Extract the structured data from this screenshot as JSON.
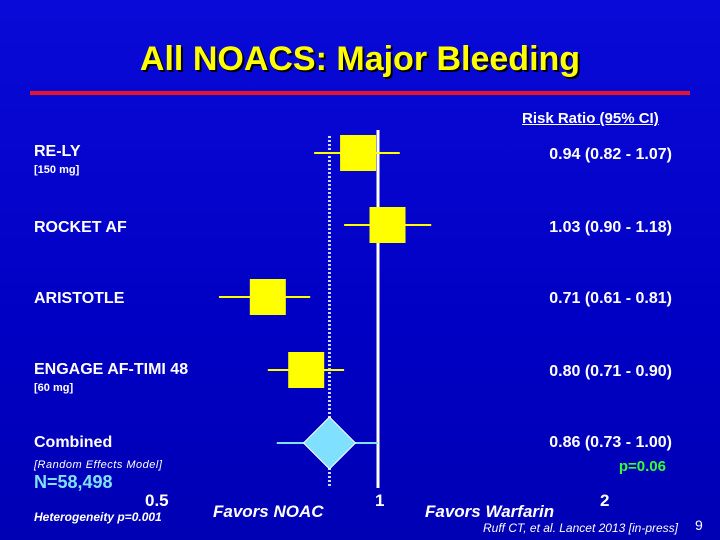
{
  "slide": {
    "title": "All NOACS: Major Bleeding",
    "column_header": "Risk Ratio (95% CI)",
    "combined_subtitle": "[Random Effects Model]",
    "p_value": "p=0.06",
    "n_label": "N=58,498",
    "heterogeneity": "Heterogeneity p=0.001",
    "favors_left": "Favors NOAC",
    "favors_right": "Favors Warfarin",
    "citation": "Ruff CT, et al. Lancet 2013 [in-press]",
    "slide_number": "9"
  },
  "colors": {
    "background": "#0000c8",
    "title": "#ffff00",
    "title_rule": "#e8122a",
    "study_marker": "#ffff00",
    "combined_marker": "#7fe1ff",
    "p_value": "#33ff33",
    "n_label": "#7fe1ff"
  },
  "chart_data": {
    "type": "forest",
    "scale": "log",
    "xlim": [
      0.5,
      2
    ],
    "reference_line": 1,
    "overall_reference": 0.86,
    "x_ticks": [
      "0.5",
      "1",
      "2"
    ],
    "studies": [
      {
        "name": "RE-LY",
        "subtitle": "[150 mg]",
        "rr": 0.94,
        "lo": 0.82,
        "hi": 1.07,
        "label": "0.94 (0.82 - 1.07)",
        "marker": "square"
      },
      {
        "name": "ROCKET AF",
        "subtitle": "",
        "rr": 1.03,
        "lo": 0.9,
        "hi": 1.18,
        "label": "1.03 (0.90 - 1.18)",
        "marker": "square"
      },
      {
        "name": "ARISTOTLE",
        "subtitle": "",
        "rr": 0.71,
        "lo": 0.61,
        "hi": 0.81,
        "label": "0.71 (0.61 - 0.81)",
        "marker": "square"
      },
      {
        "name": "ENGAGE AF-TIMI 48",
        "subtitle": "[60 mg]",
        "rr": 0.8,
        "lo": 0.71,
        "hi": 0.9,
        "label": "0.80 (0.71 - 0.90)",
        "marker": "square"
      },
      {
        "name": "Combined",
        "subtitle": "",
        "rr": 0.86,
        "lo": 0.73,
        "hi": 1.0,
        "label": "0.86 (0.73 - 1.00)",
        "marker": "diamond"
      }
    ]
  }
}
